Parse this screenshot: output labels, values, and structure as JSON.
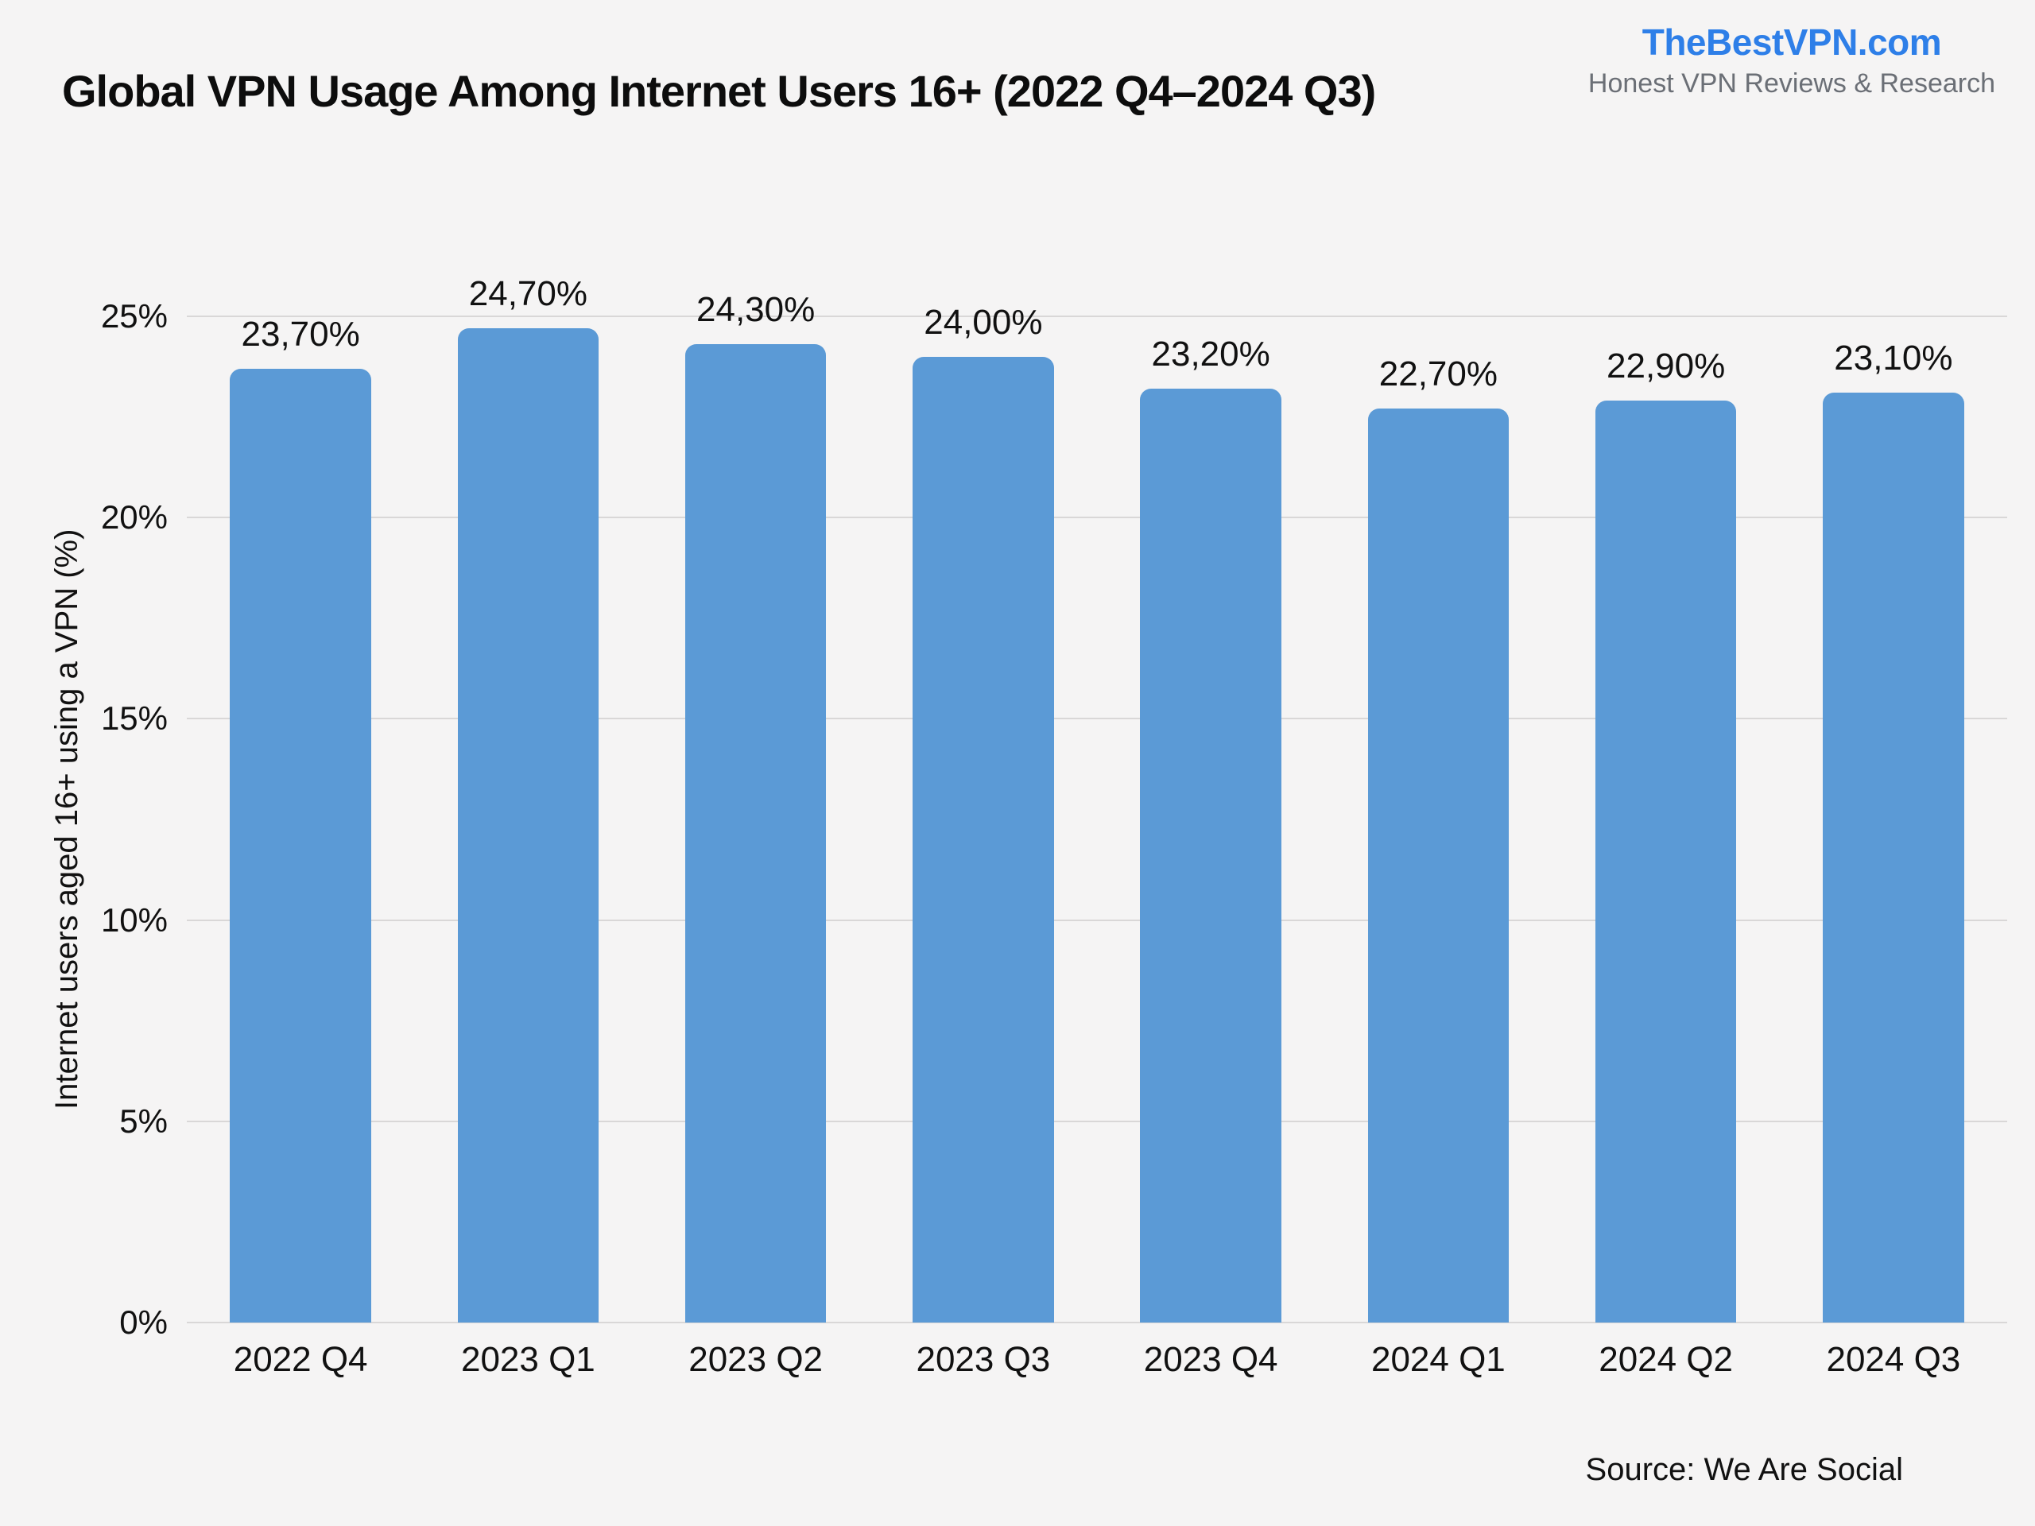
{
  "page": {
    "background_color": "#f5f4f4"
  },
  "header": {
    "title": "Global VPN Usage Among Internet Users 16+ (2022 Q4–2024 Q3)",
    "logo": {
      "name": "TheBestVPN.com",
      "tagline": "Honest VPN Reviews & Research",
      "name_color": "#2e7fe8",
      "tagline_color": "#6b6f76"
    }
  },
  "chart_data": {
    "type": "bar",
    "title": "Global VPN Usage Among Internet Users 16+ (2022 Q4–2024 Q3)",
    "categories": [
      "2022 Q4",
      "2023 Q1",
      "2023 Q2",
      "2023 Q3",
      "2023 Q4",
      "2024 Q1",
      "2024 Q2",
      "2024 Q3"
    ],
    "values": [
      23.7,
      24.7,
      24.3,
      24.0,
      23.2,
      22.7,
      22.9,
      23.1
    ],
    "value_labels": [
      "23,70%",
      "24,70%",
      "24,30%",
      "24,00%",
      "23,20%",
      "22,70%",
      "22,90%",
      "23,10%"
    ],
    "xlabel": "",
    "ylabel": "Internet users aged 16+ using a VPN (%)",
    "ylim": [
      0,
      25
    ],
    "yticks": [
      {
        "value": 0,
        "label": "0%"
      },
      {
        "value": 5,
        "label": "5%"
      },
      {
        "value": 10,
        "label": "10%"
      },
      {
        "value": 15,
        "label": "15%"
      },
      {
        "value": 20,
        "label": "20%"
      },
      {
        "value": 25,
        "label": "25%"
      }
    ],
    "grid": true,
    "legend": false,
    "bar_color": "#5b9ad6",
    "gridline_color": "#d9d7d7",
    "label_color": "#111111"
  },
  "footer": {
    "source": "Source: We Are Social"
  }
}
